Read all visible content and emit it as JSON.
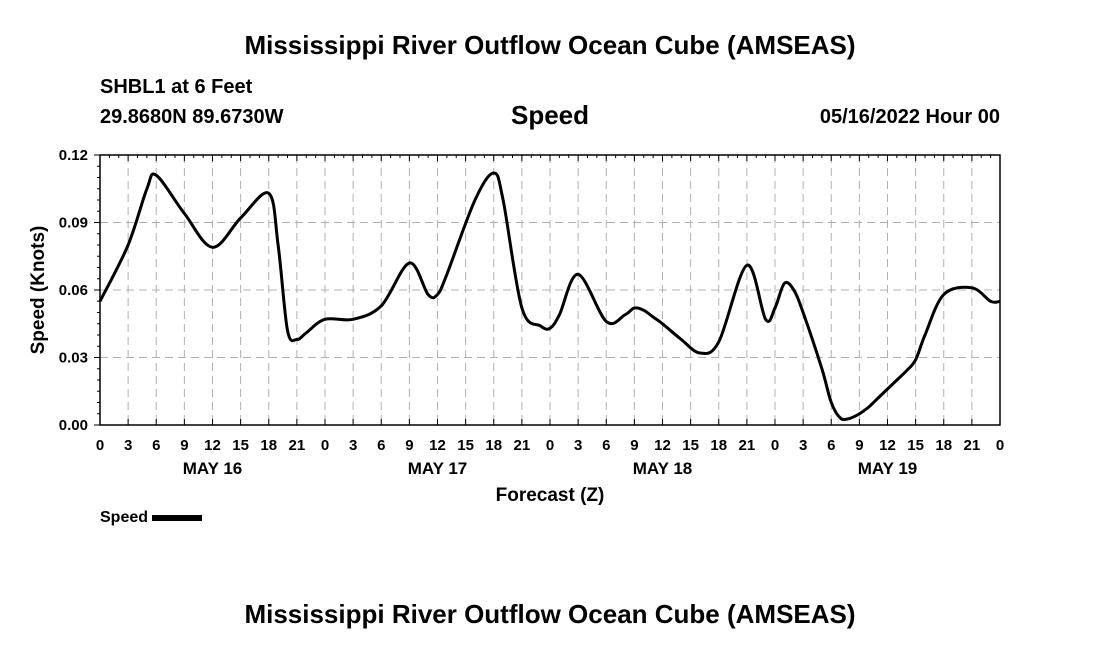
{
  "header": {
    "title": "Mississippi River Outflow Ocean Cube (AMSEAS)",
    "station": "SHBL1 at 6 Feet",
    "coords": "29.8680N  89.6730W",
    "subtitle": "Speed",
    "datetime": "05/16/2022 Hour 00"
  },
  "footer": {
    "title": "Mississippi River Outflow Ocean Cube (AMSEAS)"
  },
  "legend": {
    "label": "Speed"
  },
  "colors": {
    "line": "#000000",
    "grid": "#b0b0b0"
  },
  "chart_data": {
    "type": "line",
    "title": "Speed",
    "xlabel": "Forecast (Z)",
    "ylabel": "Speed (Knots)",
    "xlim": [
      0,
      96
    ],
    "ylim": [
      0,
      0.12
    ],
    "yticks": [
      0,
      0.03,
      0.06,
      0.09,
      0.12
    ],
    "ytick_labels": [
      "0.00",
      "0.03",
      "0.06",
      "0.09",
      "0.12"
    ],
    "xtick_labels": [
      "0",
      "3",
      "6",
      "9",
      "12",
      "15",
      "18",
      "21",
      "0",
      "3",
      "6",
      "9",
      "12",
      "15",
      "18",
      "21",
      "0",
      "3",
      "6",
      "9",
      "12",
      "15",
      "18",
      "21",
      "0",
      "3",
      "6",
      "9",
      "12",
      "15",
      "18",
      "21",
      "0"
    ],
    "day_labels": [
      {
        "label": "MAY 16",
        "hour": 12
      },
      {
        "label": "MAY 17",
        "hour": 36
      },
      {
        "label": "MAY 18",
        "hour": 60
      },
      {
        "label": "MAY 19",
        "hour": 84
      }
    ],
    "grid": true,
    "series": [
      {
        "name": "Speed",
        "x": [
          0,
          3,
          5,
          6,
          9,
          12,
          15,
          18,
          19,
          20,
          21,
          22,
          24,
          27,
          30,
          33,
          35,
          36,
          37,
          40,
          42,
          43,
          45,
          47,
          48,
          49,
          51,
          54,
          56,
          57,
          58,
          59,
          60,
          62,
          64,
          66,
          69,
          71,
          72,
          73,
          74,
          75,
          77,
          78,
          79,
          80,
          81,
          82,
          83,
          84,
          85,
          86,
          87,
          88,
          90,
          93,
          95,
          96
        ],
        "values": [
          0.055,
          0.08,
          0.105,
          0.111,
          0.094,
          0.079,
          0.092,
          0.103,
          0.08,
          0.042,
          0.038,
          0.041,
          0.047,
          0.047,
          0.053,
          0.072,
          0.058,
          0.058,
          0.067,
          0.1,
          0.112,
          0.1,
          0.052,
          0.044,
          0.043,
          0.049,
          0.067,
          0.046,
          0.049,
          0.052,
          0.051,
          0.048,
          0.045,
          0.038,
          0.032,
          0.037,
          0.071,
          0.047,
          0.052,
          0.063,
          0.06,
          0.05,
          0.025,
          0.01,
          0.003,
          0.003,
          0.005,
          0.008,
          0.012,
          0.016,
          0.02,
          0.024,
          0.029,
          0.04,
          0.058,
          0.061,
          0.055,
          0.055
        ]
      }
    ]
  }
}
